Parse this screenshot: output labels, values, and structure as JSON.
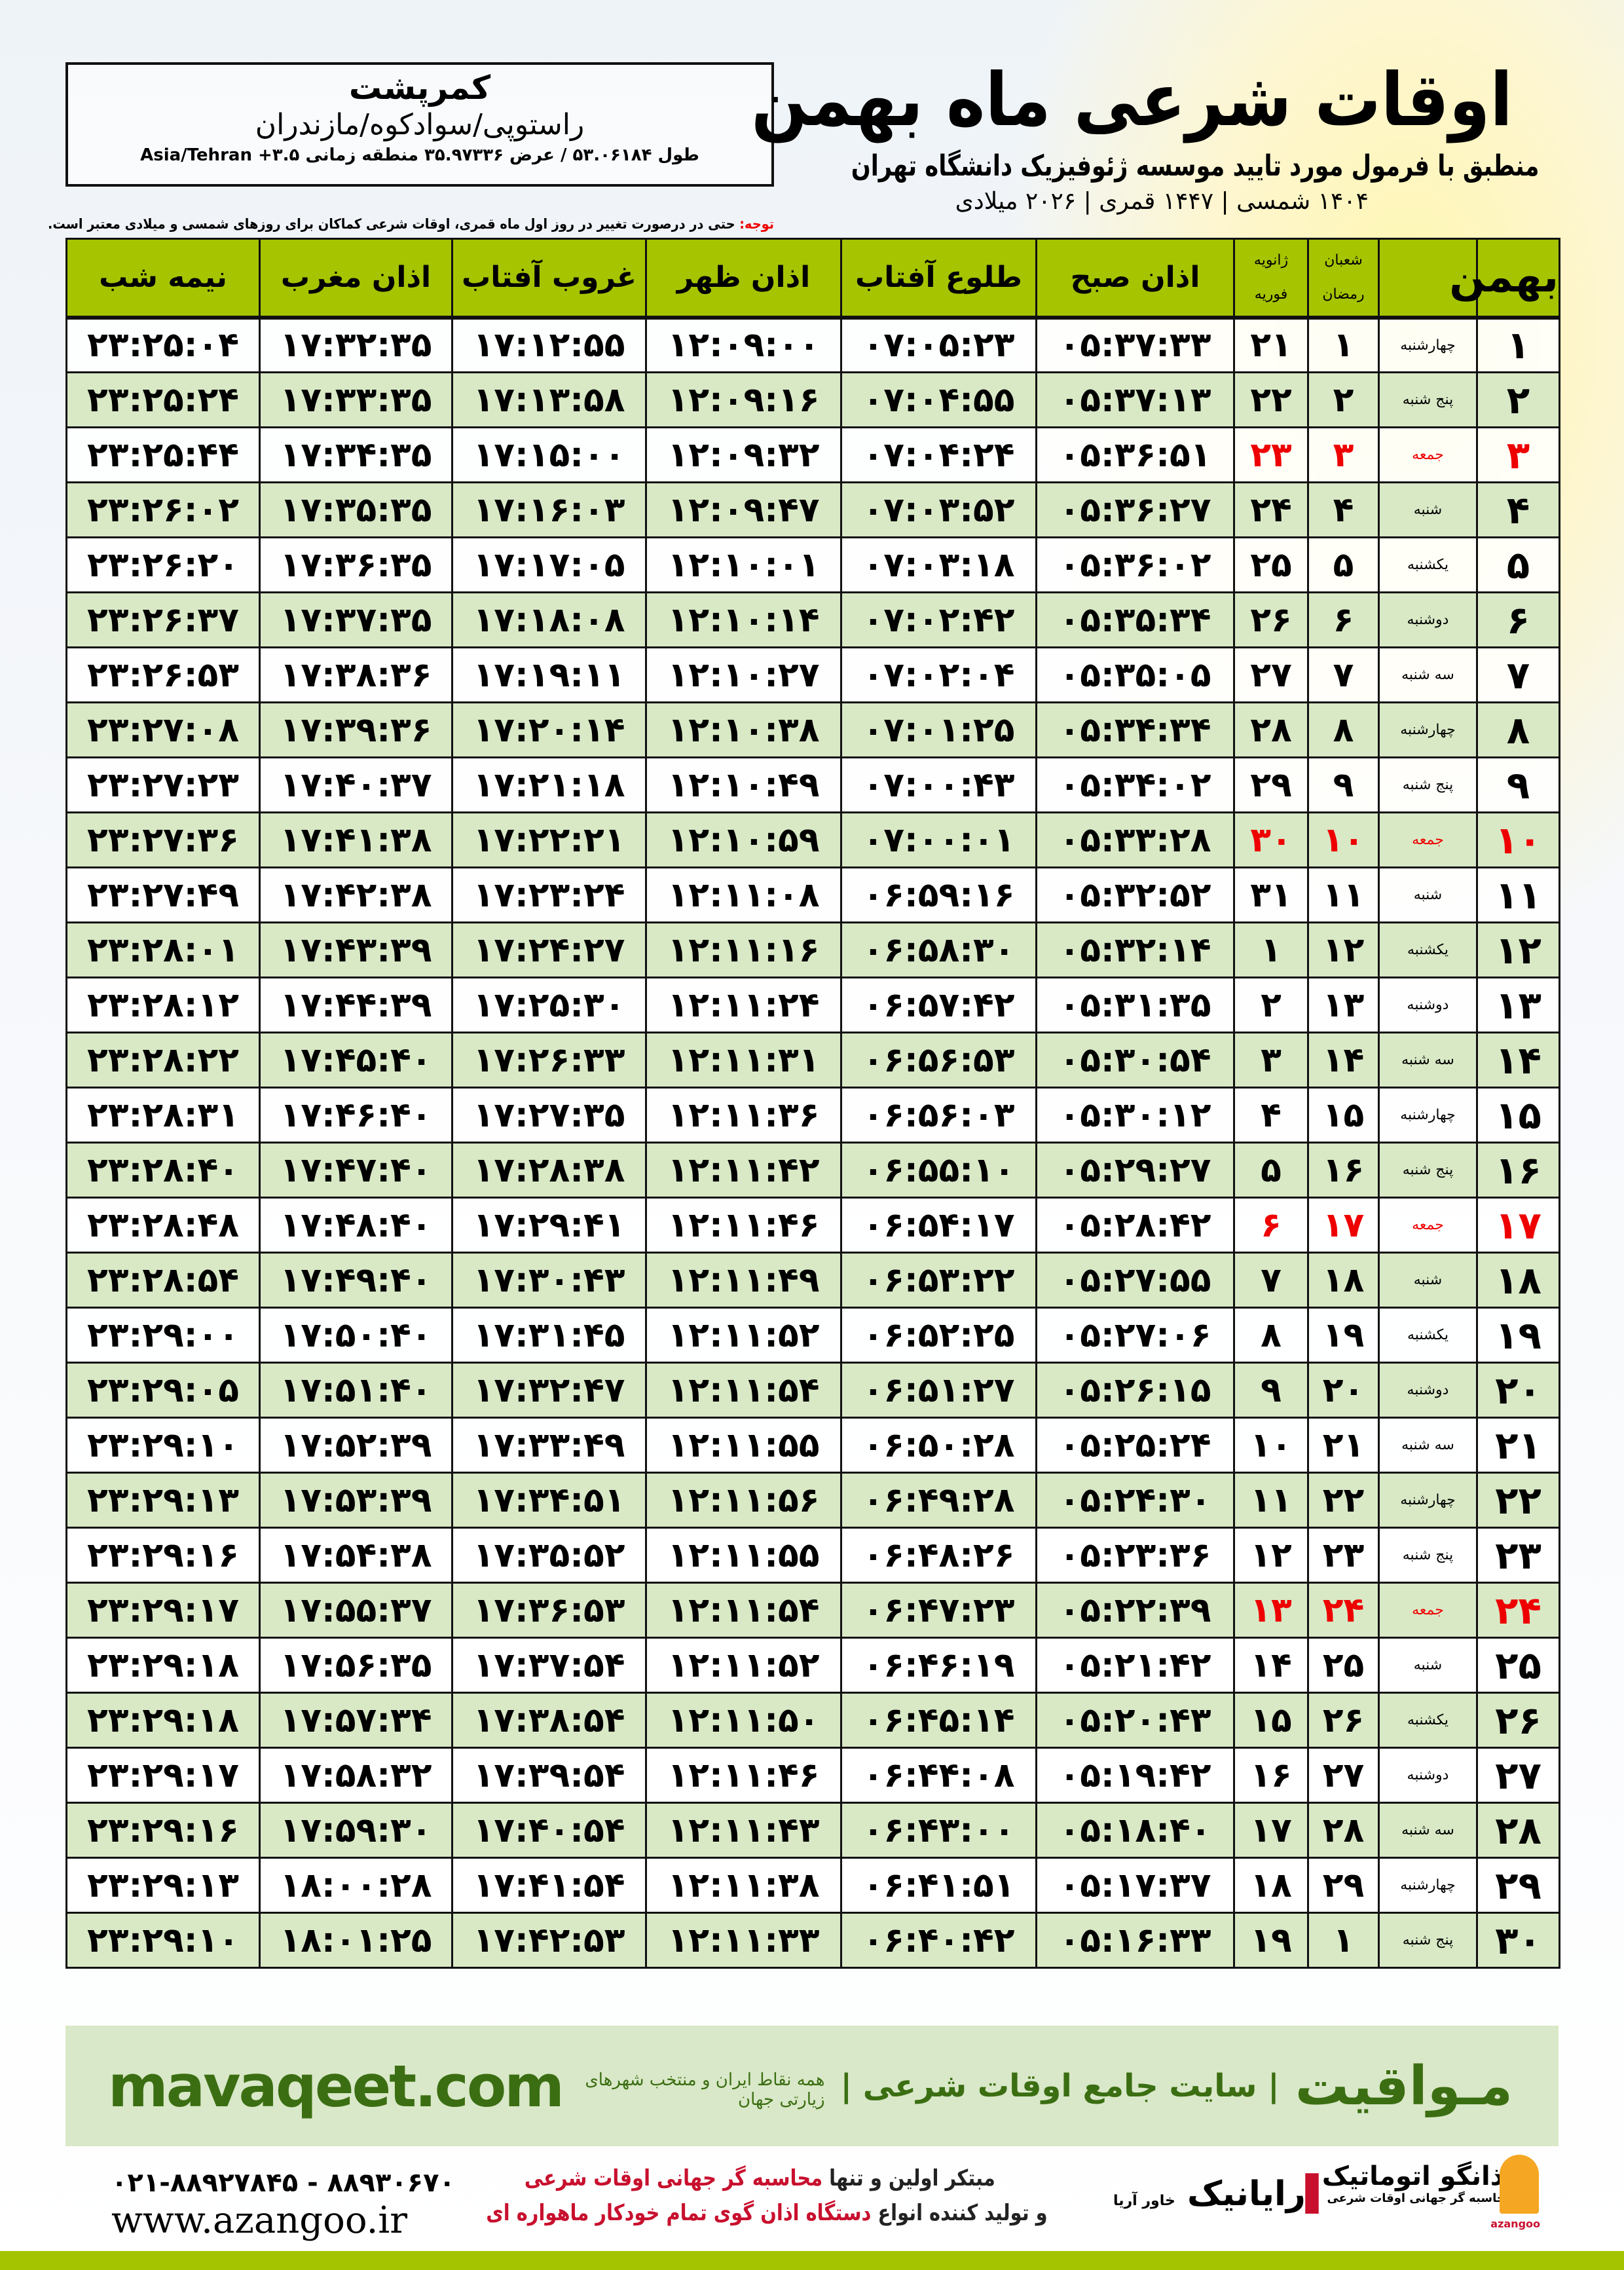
{
  "location": {
    "name": "کمرپشت",
    "region": "راستوپی/سوادکوه/مازندران",
    "coords": "طول ۵۳.۰۶۱۸۴ / عرض ۳۵.۹۷۳۳۶ منطقه زمانی Asia/Tehran +۳.۵"
  },
  "header": {
    "title": "اوقات شرعی ماه بهمن",
    "subtitle": "منطبق با فرمول مورد تایید موسسه ژئوفیزیک دانشگاه تهران",
    "dates": "۱۴۰۴ شمسی | ۱۴۴۷ قمری | ۲۰۲۶ میلادی"
  },
  "note": {
    "label": "توجه:",
    "text": " حتی در درصورت تغییر در روز اول ماه قمری، اوقات شرعی کماکان برای روزهای شمسی و میلادی معتبر است."
  },
  "table": {
    "headers": {
      "month": "بهمن",
      "hijri_top": "شعبان",
      "hijri_bottom": "رمضان",
      "greg_top": "ژانویه",
      "greg_bottom": "فوریه",
      "fajr": "اذان صبح",
      "sunrise": "طلوع آفتاب",
      "dhuhr": "اذان ظهر",
      "sunset": "غروب آفتاب",
      "maghrib": "اذان مغرب",
      "midnight": "نیمه شب"
    },
    "friday_color": "#e00000",
    "rows": [
      [
        "۱",
        "چهارشنبه",
        "۱",
        "۲۱",
        "۰۵:۳۷:۳۳",
        "۰۷:۰۵:۲۳",
        "۱۲:۰۹:۰۰",
        "۱۷:۱۲:۵۵",
        "۱۷:۳۲:۳۵",
        "۲۳:۲۵:۰۴"
      ],
      [
        "۲",
        "پنج شنبه",
        "۲",
        "۲۲",
        "۰۵:۳۷:۱۳",
        "۰۷:۰۴:۵۵",
        "۱۲:۰۹:۱۶",
        "۱۷:۱۳:۵۸",
        "۱۷:۳۳:۳۵",
        "۲۳:۲۵:۲۴"
      ],
      [
        "۳",
        "جمعه",
        "۳",
        "۲۳",
        "۰۵:۳۶:۵۱",
        "۰۷:۰۴:۲۴",
        "۱۲:۰۹:۳۲",
        "۱۷:۱۵:۰۰",
        "۱۷:۳۴:۳۵",
        "۲۳:۲۵:۴۴"
      ],
      [
        "۴",
        "شنبه",
        "۴",
        "۲۴",
        "۰۵:۳۶:۲۷",
        "۰۷:۰۳:۵۲",
        "۱۲:۰۹:۴۷",
        "۱۷:۱۶:۰۳",
        "۱۷:۳۵:۳۵",
        "۲۳:۲۶:۰۲"
      ],
      [
        "۵",
        "یکشنبه",
        "۵",
        "۲۵",
        "۰۵:۳۶:۰۲",
        "۰۷:۰۳:۱۸",
        "۱۲:۱۰:۰۱",
        "۱۷:۱۷:۰۵",
        "۱۷:۳۶:۳۵",
        "۲۳:۲۶:۲۰"
      ],
      [
        "۶",
        "دوشنبه",
        "۶",
        "۲۶",
        "۰۵:۳۵:۳۴",
        "۰۷:۰۲:۴۲",
        "۱۲:۱۰:۱۴",
        "۱۷:۱۸:۰۸",
        "۱۷:۳۷:۳۵",
        "۲۳:۲۶:۳۷"
      ],
      [
        "۷",
        "سه شنبه",
        "۷",
        "۲۷",
        "۰۵:۳۵:۰۵",
        "۰۷:۰۲:۰۴",
        "۱۲:۱۰:۲۷",
        "۱۷:۱۹:۱۱",
        "۱۷:۳۸:۳۶",
        "۲۳:۲۶:۵۳"
      ],
      [
        "۸",
        "چهارشنبه",
        "۸",
        "۲۸",
        "۰۵:۳۴:۳۴",
        "۰۷:۰۱:۲۵",
        "۱۲:۱۰:۳۸",
        "۱۷:۲۰:۱۴",
        "۱۷:۳۹:۳۶",
        "۲۳:۲۷:۰۸"
      ],
      [
        "۹",
        "پنج شنبه",
        "۹",
        "۲۹",
        "۰۵:۳۴:۰۲",
        "۰۷:۰۰:۴۳",
        "۱۲:۱۰:۴۹",
        "۱۷:۲۱:۱۸",
        "۱۷:۴۰:۳۷",
        "۲۳:۲۷:۲۳"
      ],
      [
        "۱۰",
        "جمعه",
        "۱۰",
        "۳۰",
        "۰۵:۳۳:۲۸",
        "۰۷:۰۰:۰۱",
        "۱۲:۱۰:۵۹",
        "۱۷:۲۲:۲۱",
        "۱۷:۴۱:۳۸",
        "۲۳:۲۷:۳۶"
      ],
      [
        "۱۱",
        "شنبه",
        "۱۱",
        "۳۱",
        "۰۵:۳۲:۵۲",
        "۰۶:۵۹:۱۶",
        "۱۲:۱۱:۰۸",
        "۱۷:۲۳:۲۴",
        "۱۷:۴۲:۳۸",
        "۲۳:۲۷:۴۹"
      ],
      [
        "۱۲",
        "یکشنبه",
        "۱۲",
        "۱",
        "۰۵:۳۲:۱۴",
        "۰۶:۵۸:۳۰",
        "۱۲:۱۱:۱۶",
        "۱۷:۲۴:۲۷",
        "۱۷:۴۳:۳۹",
        "۲۳:۲۸:۰۱"
      ],
      [
        "۱۳",
        "دوشنبه",
        "۱۳",
        "۲",
        "۰۵:۳۱:۳۵",
        "۰۶:۵۷:۴۲",
        "۱۲:۱۱:۲۴",
        "۱۷:۲۵:۳۰",
        "۱۷:۴۴:۳۹",
        "۲۳:۲۸:۱۲"
      ],
      [
        "۱۴",
        "سه شنبه",
        "۱۴",
        "۳",
        "۰۵:۳۰:۵۴",
        "۰۶:۵۶:۵۳",
        "۱۲:۱۱:۳۱",
        "۱۷:۲۶:۳۳",
        "۱۷:۴۵:۴۰",
        "۲۳:۲۸:۲۲"
      ],
      [
        "۱۵",
        "چهارشنبه",
        "۱۵",
        "۴",
        "۰۵:۳۰:۱۲",
        "۰۶:۵۶:۰۳",
        "۱۲:۱۱:۳۶",
        "۱۷:۲۷:۳۵",
        "۱۷:۴۶:۴۰",
        "۲۳:۲۸:۳۱"
      ],
      [
        "۱۶",
        "پنج شنبه",
        "۱۶",
        "۵",
        "۰۵:۲۹:۲۷",
        "۰۶:۵۵:۱۰",
        "۱۲:۱۱:۴۲",
        "۱۷:۲۸:۳۸",
        "۱۷:۴۷:۴۰",
        "۲۳:۲۸:۴۰"
      ],
      [
        "۱۷",
        "جمعه",
        "۱۷",
        "۶",
        "۰۵:۲۸:۴۲",
        "۰۶:۵۴:۱۷",
        "۱۲:۱۱:۴۶",
        "۱۷:۲۹:۴۱",
        "۱۷:۴۸:۴۰",
        "۲۳:۲۸:۴۸"
      ],
      [
        "۱۸",
        "شنبه",
        "۱۸",
        "۷",
        "۰۵:۲۷:۵۵",
        "۰۶:۵۳:۲۲",
        "۱۲:۱۱:۴۹",
        "۱۷:۳۰:۴۳",
        "۱۷:۴۹:۴۰",
        "۲۳:۲۸:۵۴"
      ],
      [
        "۱۹",
        "یکشنبه",
        "۱۹",
        "۸",
        "۰۵:۲۷:۰۶",
        "۰۶:۵۲:۲۵",
        "۱۲:۱۱:۵۲",
        "۱۷:۳۱:۴۵",
        "۱۷:۵۰:۴۰",
        "۲۳:۲۹:۰۰"
      ],
      [
        "۲۰",
        "دوشنبه",
        "۲۰",
        "۹",
        "۰۵:۲۶:۱۵",
        "۰۶:۵۱:۲۷",
        "۱۲:۱۱:۵۴",
        "۱۷:۳۲:۴۷",
        "۱۷:۵۱:۴۰",
        "۲۳:۲۹:۰۵"
      ],
      [
        "۲۱",
        "سه شنبه",
        "۲۱",
        "۱۰",
        "۰۵:۲۵:۲۴",
        "۰۶:۵۰:۲۸",
        "۱۲:۱۱:۵۵",
        "۱۷:۳۳:۴۹",
        "۱۷:۵۲:۳۹",
        "۲۳:۲۹:۱۰"
      ],
      [
        "۲۲",
        "چهارشنبه",
        "۲۲",
        "۱۱",
        "۰۵:۲۴:۳۰",
        "۰۶:۴۹:۲۸",
        "۱۲:۱۱:۵۶",
        "۱۷:۳۴:۵۱",
        "۱۷:۵۳:۳۹",
        "۲۳:۲۹:۱۳"
      ],
      [
        "۲۳",
        "پنج شنبه",
        "۲۳",
        "۱۲",
        "۰۵:۲۳:۳۶",
        "۰۶:۴۸:۲۶",
        "۱۲:۱۱:۵۵",
        "۱۷:۳۵:۵۲",
        "۱۷:۵۴:۳۸",
        "۲۳:۲۹:۱۶"
      ],
      [
        "۲۴",
        "جمعه",
        "۲۴",
        "۱۳",
        "۰۵:۲۲:۳۹",
        "۰۶:۴۷:۲۳",
        "۱۲:۱۱:۵۴",
        "۱۷:۳۶:۵۳",
        "۱۷:۵۵:۳۷",
        "۲۳:۲۹:۱۷"
      ],
      [
        "۲۵",
        "شنبه",
        "۲۵",
        "۱۴",
        "۰۵:۲۱:۴۲",
        "۰۶:۴۶:۱۹",
        "۱۲:۱۱:۵۲",
        "۱۷:۳۷:۵۴",
        "۱۷:۵۶:۳۵",
        "۲۳:۲۹:۱۸"
      ],
      [
        "۲۶",
        "یکشنبه",
        "۲۶",
        "۱۵",
        "۰۵:۲۰:۴۳",
        "۰۶:۴۵:۱۴",
        "۱۲:۱۱:۵۰",
        "۱۷:۳۸:۵۴",
        "۱۷:۵۷:۳۴",
        "۲۳:۲۹:۱۸"
      ],
      [
        "۲۷",
        "دوشنبه",
        "۲۷",
        "۱۶",
        "۰۵:۱۹:۴۲",
        "۰۶:۴۴:۰۸",
        "۱۲:۱۱:۴۶",
        "۱۷:۳۹:۵۴",
        "۱۷:۵۸:۳۲",
        "۲۳:۲۹:۱۷"
      ],
      [
        "۲۸",
        "سه شنبه",
        "۲۸",
        "۱۷",
        "۰۵:۱۸:۴۰",
        "۰۶:۴۳:۰۰",
        "۱۲:۱۱:۴۳",
        "۱۷:۴۰:۵۴",
        "۱۷:۵۹:۳۰",
        "۲۳:۲۹:۱۶"
      ],
      [
        "۲۹",
        "چهارشنبه",
        "۲۹",
        "۱۸",
        "۰۵:۱۷:۳۷",
        "۰۶:۴۱:۵۱",
        "۱۲:۱۱:۳۸",
        "۱۷:۴۱:۵۴",
        "۱۸:۰۰:۲۸",
        "۲۳:۲۹:۱۳"
      ],
      [
        "۳۰",
        "پنج شنبه",
        "۱",
        "۱۹",
        "۰۵:۱۶:۳۳",
        "۰۶:۴۰:۴۲",
        "۱۲:۱۱:۳۳",
        "۱۷:۴۲:۵۳",
        "۱۸:۰۱:۲۵",
        "۲۳:۲۹:۱۰"
      ]
    ]
  },
  "footer": {
    "brand": "مـواقیت",
    "slogan": "| سایت جامع اوقات شرعی |",
    "slogan2": "همه نقاط ایران و منتخب شهرهای زیارتی جهان",
    "site": "mavaqeet.com",
    "line1a": "مبتکر اولین و تنها ",
    "line1b": "محاسبه گر جهانی اوقات شرعی",
    "line2a": "و تولید کننده انواع ",
    "line2b": "دستگاه اذان گوی تمام خودکار ماهواره ای",
    "phone": "۰۲۱-۸۸۹۲۷۸۴۵ - ۸۸۹۳۰۶۷۰",
    "www": "www.azangoo.ir",
    "logo_rayanik": "رایانیک",
    "logo_rayanik_sub": "خاور آریا",
    "logo_azangoo": "اذانگو اتوماتیک",
    "logo_azangoo_sub": "محاسبه گر جهانی اوقات شرعی",
    "logo_azangoo_en": "azangoo",
    "accent": "#3b6e12",
    "bar_color": "#a5c400"
  }
}
